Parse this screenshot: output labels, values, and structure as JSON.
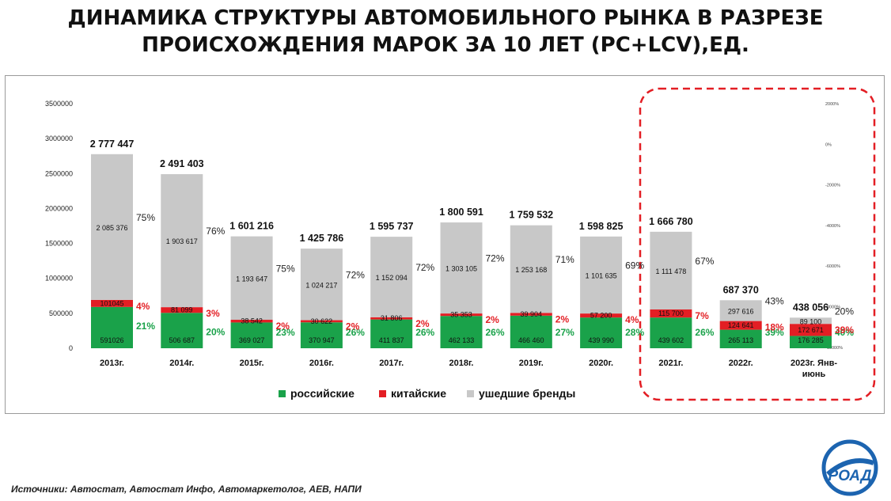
{
  "title": {
    "line1": "ДИНАМИКА СТРУКТУРЫ АВТОМОБИЛЬНОГО РЫНКА В РАЗРЕЗЕ",
    "line2": "ПРОИСХОЖДЕНИЯ МАРОК ЗА 10 ЛЕТ (PC+LCV),ЕД."
  },
  "source": "Источники: Автостат, Автостат Инфо, Автомаркетолог, АЕВ, НАПИ",
  "logo": {
    "text": "РОАД"
  },
  "colors": {
    "russian": "#1aa24a",
    "chinese": "#e31e24",
    "left": "#c8c8c8",
    "dashed": "#e31e24",
    "logo": "#1c64b0"
  },
  "chart_data": {
    "type": "bar",
    "stacked": true,
    "categories": [
      "2013г.",
      "2014г.",
      "2015г.",
      "2016г.",
      "2017г.",
      "2018г.",
      "2019г.",
      "2020г.",
      "2021г.",
      "2022г.",
      "2023г. Янв-июнь"
    ],
    "ylim": [
      0,
      3500000
    ],
    "yticks": [
      "0",
      "500000",
      "1000000",
      "1500000",
      "2000000",
      "2500000",
      "3000000",
      "3500000"
    ],
    "y2ticks": [
      "2000%",
      "0%",
      "-2000%",
      "-4000%",
      "-6000%",
      "-8000%",
      "-10000%"
    ],
    "series": [
      {
        "name": "российские",
        "values": [
          591026,
          506687,
          369027,
          370947,
          411837,
          462133,
          466460,
          439990,
          439602,
          265113,
          176285
        ],
        "labels": [
          "591026",
          "506 687",
          "369 027",
          "370 947",
          "411 837",
          "462 133",
          "466 460",
          "439 990",
          "439 602",
          "265 113",
          "176 285"
        ],
        "shares": [
          "21%",
          "20%",
          "23%",
          "26%",
          "26%",
          "26%",
          "27%",
          "28%",
          "26%",
          "39%",
          "40%"
        ]
      },
      {
        "name": "китайские",
        "values": [
          101045,
          81099,
          38542,
          30622,
          31806,
          35353,
          39904,
          57200,
          115700,
          124641,
          172671
        ],
        "labels": [
          "101045",
          "81 099",
          "38 542",
          "30 622",
          "31 806",
          "35 353",
          "39 904",
          "57 200",
          "115 700",
          "124 641",
          "172 671"
        ],
        "shares": [
          "4%",
          "3%",
          "2%",
          "2%",
          "2%",
          "2%",
          "2%",
          "4%",
          "7%",
          "18%",
          "39%"
        ]
      },
      {
        "name": "ушедшие бренды",
        "values": [
          2085376,
          1903617,
          1193647,
          1024217,
          1152094,
          1303105,
          1253168,
          1101635,
          1111478,
          297616,
          89100
        ],
        "labels": [
          "2 085 376",
          "1 903 617",
          "1 193 647",
          "1 024 217",
          "1 152 094",
          "1 303 105",
          "1 253 168",
          "1 101 635",
          "1 111 478",
          "297 616",
          "89 100"
        ],
        "shares": [
          "75%",
          "76%",
          "75%",
          "72%",
          "72%",
          "72%",
          "71%",
          "69%",
          "67%",
          "43%",
          "20%"
        ]
      }
    ],
    "totals": [
      "2 777 447",
      "2 491 403",
      "1 601 216",
      "1 425 786",
      "1 595 737",
      "1 800 591",
      "1 759 532",
      "1 598 825",
      "1 666 780",
      "687 370",
      "438 056"
    ],
    "legend": [
      "российские",
      "китайские",
      "ушедшие бренды"
    ]
  }
}
